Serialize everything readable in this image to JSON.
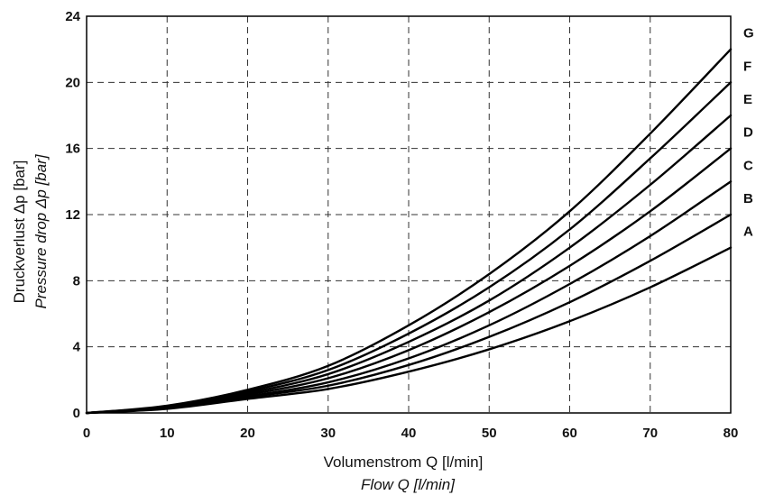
{
  "chart_data": {
    "type": "line",
    "xlabel": "Volumenstrom Q [l/min]",
    "xlabel_secondary": "Flow Q [l/min]",
    "ylabel": "Druckverlust Δp [bar]",
    "ylabel_secondary": "Pressure drop Δp [bar]",
    "xlim": [
      0,
      80
    ],
    "ylim": [
      0,
      24
    ],
    "x_ticks": [
      "0",
      "10",
      "20",
      "30",
      "40",
      "50",
      "60",
      "70",
      "80"
    ],
    "y_ticks": [
      "0",
      "4",
      "8",
      "12",
      "16",
      "20",
      "24"
    ],
    "grid": true,
    "line_color": "#000000",
    "x": [
      0,
      10,
      20,
      30,
      40,
      50,
      60,
      70,
      80
    ],
    "series": [
      {
        "name": "A",
        "values": [
          0,
          0.25,
          0.85,
          1.45,
          2.5,
          3.85,
          5.55,
          7.6,
          10.0
        ]
      },
      {
        "name": "B",
        "values": [
          0,
          0.28,
          0.95,
          1.65,
          2.9,
          4.6,
          6.7,
          9.2,
          12.0
        ]
      },
      {
        "name": "C",
        "values": [
          0,
          0.3,
          1.0,
          1.85,
          3.3,
          5.3,
          7.8,
          10.7,
          14.0
        ]
      },
      {
        "name": "D",
        "values": [
          0,
          0.33,
          1.1,
          2.1,
          3.8,
          6.1,
          8.9,
          12.2,
          16.0
        ]
      },
      {
        "name": "E",
        "values": [
          0,
          0.36,
          1.2,
          2.35,
          4.3,
          6.8,
          10.0,
          13.8,
          18.0
        ]
      },
      {
        "name": "F",
        "values": [
          0,
          0.4,
          1.3,
          2.6,
          4.8,
          7.6,
          11.1,
          15.4,
          20.0
        ]
      },
      {
        "name": "G",
        "values": [
          0,
          0.44,
          1.4,
          2.85,
          5.3,
          8.4,
          12.2,
          16.9,
          22.0
        ]
      }
    ]
  }
}
